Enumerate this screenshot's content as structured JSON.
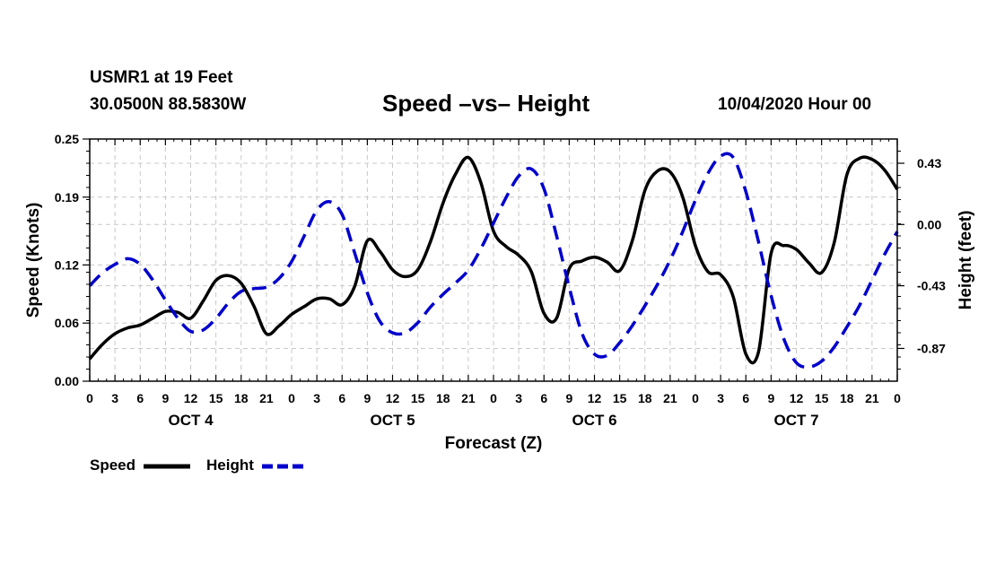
{
  "header": {
    "station": "USMR1 at 19 Feet",
    "coords": "30.0500N 88.5830W",
    "title": "Speed –vs– Height",
    "datetime": "10/04/2020 Hour 00"
  },
  "chart_data": {
    "type": "line",
    "title": "Speed –vs– Height",
    "xlabel": "Forecast (Z)",
    "ylabel_left": "Speed (Knots)",
    "ylabel_right": "Height (feet)",
    "x_range": [
      0,
      96
    ],
    "x_tick_labels": [
      "0",
      "3",
      "6",
      "9",
      "12",
      "15",
      "18",
      "21",
      "0",
      "3",
      "6",
      "9",
      "12",
      "15",
      "18",
      "21",
      "0",
      "3",
      "6",
      "9",
      "12",
      "15",
      "18",
      "21",
      "0",
      "3",
      "6",
      "9",
      "12",
      "15",
      "18",
      "21",
      "0"
    ],
    "day_labels": [
      "OCT 4",
      "OCT 5",
      "OCT 6",
      "OCT 7"
    ],
    "y_left": {
      "range": [
        0,
        0.25
      ],
      "ticks": [
        0.0,
        0.06,
        0.12,
        0.19,
        0.25
      ],
      "tick_labels": [
        "0.00",
        "0.06",
        "0.12",
        "0.19",
        "0.25"
      ]
    },
    "y_right": {
      "range": [
        -1.1,
        0.6
      ],
      "ticks": [
        0.43,
        0.0,
        -0.43,
        -0.87
      ],
      "tick_labels": [
        "0.43",
        "0.00",
        "-0.43",
        "-0.87"
      ]
    },
    "grid": true,
    "series": [
      {
        "name": "Speed",
        "axis": "left",
        "color": "#000000",
        "dash": "solid",
        "x": [
          0,
          1.5,
          3,
          4.5,
          6,
          7.5,
          9,
          10.5,
          12,
          13.5,
          15,
          16.5,
          18,
          19.5,
          21,
          22.5,
          24,
          25.5,
          27,
          28.5,
          30,
          31.5,
          33,
          34.5,
          36,
          37.5,
          39,
          40.5,
          42,
          43.5,
          45,
          46.5,
          48,
          49.5,
          51,
          52.5,
          54,
          55.5,
          57,
          58.5,
          60,
          61.5,
          63,
          64.5,
          66,
          67.5,
          69,
          70.5,
          72,
          73.5,
          75,
          76.5,
          78,
          79.5,
          81,
          82.5,
          84,
          85.5,
          87,
          88.5,
          90,
          91.5,
          93,
          94.5,
          96
        ],
        "values": [
          0.023,
          0.038,
          0.049,
          0.055,
          0.058,
          0.065,
          0.072,
          0.071,
          0.065,
          0.083,
          0.104,
          0.109,
          0.101,
          0.078,
          0.049,
          0.057,
          0.069,
          0.077,
          0.085,
          0.085,
          0.079,
          0.098,
          0.145,
          0.134,
          0.115,
          0.108,
          0.115,
          0.144,
          0.184,
          0.214,
          0.231,
          0.205,
          0.155,
          0.139,
          0.13,
          0.113,
          0.07,
          0.065,
          0.116,
          0.124,
          0.128,
          0.123,
          0.114,
          0.145,
          0.197,
          0.217,
          0.216,
          0.19,
          0.14,
          0.113,
          0.11,
          0.087,
          0.028,
          0.03,
          0.132,
          0.14,
          0.136,
          0.122,
          0.112,
          0.143,
          0.213,
          0.23,
          0.229,
          0.218,
          0.198
        ]
      },
      {
        "name": "Height",
        "axis": "right",
        "color": "#0000cc",
        "dash": "dashed",
        "x": [
          0,
          1.5,
          3,
          4.5,
          6,
          7.5,
          9,
          10.5,
          12,
          13.5,
          15,
          16.5,
          18,
          19.5,
          21,
          22.5,
          24,
          25.5,
          27,
          28.5,
          30,
          31.5,
          33,
          34.5,
          36,
          37.5,
          39,
          40.5,
          42,
          43.5,
          45,
          46.5,
          48,
          49.5,
          51,
          52.5,
          54,
          55.5,
          57,
          58.5,
          60,
          61.5,
          63,
          64.5,
          66,
          67.5,
          69,
          70.5,
          72,
          73.5,
          75,
          76.5,
          78,
          79.5,
          81,
          82.5,
          84,
          85.5,
          87,
          88.5,
          90,
          91.5,
          93,
          94.5,
          96
        ],
        "values": [
          -0.43,
          -0.34,
          -0.28,
          -0.24,
          -0.28,
          -0.39,
          -0.53,
          -0.66,
          -0.75,
          -0.74,
          -0.66,
          -0.55,
          -0.47,
          -0.45,
          -0.44,
          -0.38,
          -0.26,
          -0.08,
          0.1,
          0.16,
          0.07,
          -0.2,
          -0.48,
          -0.68,
          -0.76,
          -0.76,
          -0.69,
          -0.58,
          -0.49,
          -0.41,
          -0.32,
          -0.17,
          0.01,
          0.19,
          0.34,
          0.39,
          0.25,
          -0.08,
          -0.44,
          -0.76,
          -0.91,
          -0.92,
          -0.83,
          -0.71,
          -0.57,
          -0.42,
          -0.25,
          -0.05,
          0.17,
          0.36,
          0.48,
          0.47,
          0.23,
          -0.12,
          -0.5,
          -0.8,
          -0.97,
          -1.0,
          -0.96,
          -0.86,
          -0.72,
          -0.57,
          -0.39,
          -0.21,
          -0.05
        ]
      }
    ],
    "legend": [
      {
        "label": "Speed",
        "color": "#000000",
        "dash": "solid"
      },
      {
        "label": "Height",
        "color": "#0000cc",
        "dash": "dashed"
      }
    ],
    "legend_position": "bottom-left"
  }
}
